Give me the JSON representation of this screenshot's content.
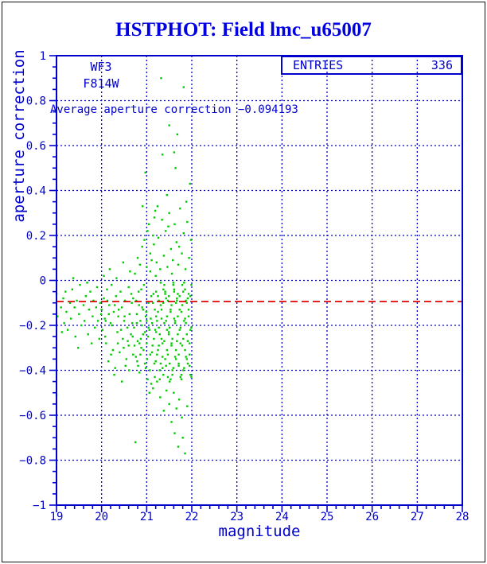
{
  "header": {
    "title": "HSTPHOT: Field lmc_u65007"
  },
  "annotations": {
    "camera": "WF3",
    "filter": "F814W",
    "average_line_label": "Average aperture correction −0.094193",
    "entries_label": "ENTRIES",
    "entries_value": "336"
  },
  "colors": {
    "plot_blue": "#0000CC",
    "title_blue": "#0000E0",
    "point_green": "#00CC00",
    "line_red": "#E60000",
    "page_border": "#101010"
  },
  "chart_data": {
    "type": "scatter",
    "title": "HSTPHOT: Field lmc_u65007",
    "xlabel": "magnitude",
    "ylabel": "aperture correction",
    "xlim": [
      19,
      28
    ],
    "ylim": [
      -1,
      1
    ],
    "grid": "dotted",
    "legend_position": "none",
    "x_ticks": [
      {
        "v": 19,
        "label": "19"
      },
      {
        "v": 20,
        "label": "20"
      },
      {
        "v": 21,
        "label": "21"
      },
      {
        "v": 22,
        "label": "22"
      },
      {
        "v": 23,
        "label": "23"
      },
      {
        "v": 24,
        "label": "24"
      },
      {
        "v": 25,
        "label": "25"
      },
      {
        "v": 26,
        "label": "26"
      },
      {
        "v": 27,
        "label": "27"
      },
      {
        "v": 28,
        "label": "28"
      }
    ],
    "y_ticks": [
      {
        "v": 1,
        "label": "1"
      },
      {
        "v": 0.8,
        "label": "0.8"
      },
      {
        "v": 0.6,
        "label": "0.6"
      },
      {
        "v": 0.4,
        "label": "0.4"
      },
      {
        "v": 0.2,
        "label": "0.2"
      },
      {
        "v": 0,
        "label": "0"
      },
      {
        "v": -0.2,
        "label": "−0.2"
      },
      {
        "v": -0.4,
        "label": "−0.4"
      },
      {
        "v": -0.6,
        "label": "−0.6"
      },
      {
        "v": -0.8,
        "label": "−0.8"
      },
      {
        "v": -1,
        "label": "−1"
      }
    ],
    "x_minor_step": 0.2,
    "y_minor_step": 0.05,
    "entries": 336,
    "average_aperture_correction": -0.094193,
    "points": [
      [
        19.0,
        -0.06
      ],
      [
        19.02,
        -0.16
      ],
      [
        19.0,
        -0.51
      ],
      [
        19.1,
        -0.12
      ],
      [
        19.15,
        -0.08
      ],
      [
        19.17,
        -0.19
      ],
      [
        19.2,
        -0.05
      ],
      [
        19.22,
        -0.14
      ],
      [
        19.25,
        -0.22
      ],
      [
        19.3,
        -0.1
      ],
      [
        19.32,
        -0.17
      ],
      [
        19.35,
        -0.04
      ],
      [
        19.4,
        -0.12
      ],
      [
        19.42,
        -0.25
      ],
      [
        19.45,
        -0.09
      ],
      [
        19.5,
        -0.15
      ],
      [
        19.52,
        -0.02
      ],
      [
        19.55,
        -0.2
      ],
      [
        19.6,
        -0.11
      ],
      [
        19.62,
        -0.18
      ],
      [
        19.65,
        -0.07
      ],
      [
        19.7,
        -0.24
      ],
      [
        19.72,
        -0.13
      ],
      [
        19.75,
        -0.05
      ],
      [
        19.78,
        -0.28
      ],
      [
        19.8,
        -0.16
      ],
      [
        19.82,
        -0.09
      ],
      [
        19.85,
        -0.21
      ],
      [
        19.88,
        -0.12
      ],
      [
        19.9,
        -0.03
      ],
      [
        19.92,
        -0.18
      ],
      [
        19.95,
        -0.26
      ],
      [
        19.97,
        -0.1
      ],
      [
        19.99,
        -0.15
      ],
      [
        19.37,
        0.01
      ],
      [
        19.68,
        -0.01
      ],
      [
        19.12,
        -0.23
      ],
      [
        19.48,
        -0.3
      ],
      [
        20.0,
        -0.13
      ],
      [
        20.02,
        -0.22
      ],
      [
        20.05,
        -0.08
      ],
      [
        20.07,
        -0.17
      ],
      [
        20.1,
        -0.28
      ],
      [
        20.12,
        -0.04
      ],
      [
        20.15,
        -0.36
      ],
      [
        20.17,
        -0.11
      ],
      [
        20.2,
        -0.19
      ],
      [
        20.22,
        -0.02
      ],
      [
        20.25,
        -0.31
      ],
      [
        20.27,
        -0.14
      ],
      [
        20.3,
        -0.39
      ],
      [
        20.32,
        -0.07
      ],
      [
        20.35,
        -0.23
      ],
      [
        20.37,
        -0.16
      ],
      [
        20.4,
        -0.32
      ],
      [
        20.42,
        -0.05
      ],
      [
        20.45,
        -0.12
      ],
      [
        20.45,
        -0.45
      ],
      [
        20.47,
        -0.26
      ],
      [
        20.5,
        -0.18
      ],
      [
        20.52,
        -0.09
      ],
      [
        20.55,
        -0.35
      ],
      [
        20.57,
        -0.21
      ],
      [
        20.6,
        -0.03
      ],
      [
        20.6,
        -0.29
      ],
      [
        20.62,
        -0.15
      ],
      [
        20.65,
        -0.24
      ],
      [
        20.67,
        -0.1
      ],
      [
        20.7,
        -0.33
      ],
      [
        20.05,
        0.02
      ],
      [
        20.18,
        0.05
      ],
      [
        20.33,
        0.01
      ],
      [
        20.48,
        0.08
      ],
      [
        20.63,
        0.04
      ],
      [
        20.28,
        -0.42
      ],
      [
        20.53,
        -0.38
      ],
      [
        20.08,
        -0.25
      ],
      [
        20.23,
        -0.2
      ],
      [
        20.38,
        -0.13
      ],
      [
        20.58,
        -0.27
      ],
      [
        20.68,
        -0.19
      ],
      [
        20.13,
        -0.09
      ],
      [
        20.43,
        -0.22
      ],
      [
        20.66,
        -0.06
      ],
      [
        20.21,
        -0.33
      ],
      [
        20.36,
        -0.28
      ],
      [
        20.51,
        -0.16
      ],
      [
        20.61,
        -0.4
      ],
      [
        20.09,
        -0.18
      ],
      [
        20.29,
        -0.11
      ],
      [
        20.49,
        -0.3
      ],
      [
        20.69,
        -0.25
      ],
      [
        20.16,
        -0.15
      ],
      [
        20.7,
        -0.08
      ],
      [
        20.72,
        -0.21
      ],
      [
        20.74,
        0.03
      ],
      [
        20.76,
        -0.34
      ],
      [
        20.78,
        -0.15
      ],
      [
        20.8,
        -0.27
      ],
      [
        20.8,
        0.1
      ],
      [
        20.82,
        -0.05
      ],
      [
        20.84,
        -0.41
      ],
      [
        20.86,
        -0.18
      ],
      [
        20.88,
        -0.3
      ],
      [
        20.9,
        -0.12
      ],
      [
        20.9,
        0.15
      ],
      [
        20.92,
        -0.24
      ],
      [
        20.94,
        -0.02
      ],
      [
        20.96,
        -0.37
      ],
      [
        20.97,
        0.48
      ],
      [
        20.98,
        -0.16
      ],
      [
        21.0,
        -0.28
      ],
      [
        21.0,
        0.06
      ],
      [
        21.02,
        -0.44
      ],
      [
        21.04,
        -0.1
      ],
      [
        21.06,
        -0.22
      ],
      [
        21.08,
        0.12
      ],
      [
        21.08,
        -0.33
      ],
      [
        21.1,
        -0.07
      ],
      [
        21.12,
        -0.19
      ],
      [
        21.14,
        -0.48
      ],
      [
        21.14,
        0.2
      ],
      [
        21.16,
        -0.26
      ],
      [
        21.18,
        -0.13
      ],
      [
        21.2,
        -0.36
      ],
      [
        21.2,
        0.02
      ],
      [
        20.73,
        -0.29
      ],
      [
        20.77,
        -0.09
      ],
      [
        20.81,
        -0.38
      ],
      [
        20.85,
        0.07
      ],
      [
        20.89,
        -0.2
      ],
      [
        20.93,
        -0.31
      ],
      [
        20.95,
        0.18
      ],
      [
        20.99,
        -0.14
      ],
      [
        21.03,
        -0.25
      ],
      [
        21.05,
        0.25
      ],
      [
        21.07,
        -0.4
      ],
      [
        21.09,
        -0.17
      ],
      [
        21.11,
        0.09
      ],
      [
        21.13,
        -0.29
      ],
      [
        21.15,
        -0.06
      ],
      [
        21.17,
        0.28
      ],
      [
        21.19,
        -0.22
      ],
      [
        20.75,
        -0.72
      ],
      [
        20.79,
        -0.36
      ],
      [
        20.83,
        -0.11
      ],
      [
        20.87,
        -0.26
      ],
      [
        20.91,
        0.33
      ],
      [
        21.01,
        -0.35
      ],
      [
        21.06,
        -0.5
      ],
      [
        21.16,
        0.16
      ],
      [
        20.96,
        -0.23
      ],
      [
        21.18,
        -0.43
      ],
      [
        20.88,
        -0.04
      ],
      [
        21.02,
        0.22
      ],
      [
        21.12,
        -0.32
      ],
      [
        20.78,
        -0.19
      ],
      [
        20.98,
        -0.39
      ],
      [
        21.08,
        0.04
      ],
      [
        21.1,
        -0.46
      ],
      [
        20.92,
        -0.13
      ],
      [
        21.04,
        -0.21
      ],
      [
        21.14,
        -0.1
      ],
      [
        20.84,
        -0.28
      ],
      [
        21.0,
        -0.18
      ],
      [
        21.19,
        0.31
      ],
      [
        20.86,
        -0.33
      ],
      [
        21.17,
        -0.37
      ],
      [
        21.32,
        0.9
      ],
      [
        21.82,
        0.86
      ],
      [
        21.5,
        0.69
      ],
      [
        21.68,
        0.65
      ],
      [
        21.35,
        0.56
      ],
      [
        21.61,
        0.57
      ],
      [
        21.64,
        0.5
      ],
      [
        21.96,
        0.43
      ],
      [
        21.45,
        0.38
      ],
      [
        21.22,
        0.08
      ],
      [
        21.26,
        0.19
      ],
      [
        21.3,
        0.05
      ],
      [
        21.34,
        0.27
      ],
      [
        21.38,
        0.11
      ],
      [
        21.42,
        0.22
      ],
      [
        21.46,
        0.06
      ],
      [
        21.5,
        0.3
      ],
      [
        21.54,
        0.14
      ],
      [
        21.58,
        0.09
      ],
      [
        21.62,
        0.25
      ],
      [
        21.66,
        0.17
      ],
      [
        21.7,
        0.07
      ],
      [
        21.74,
        0.32
      ],
      [
        21.78,
        0.12
      ],
      [
        21.82,
        0.21
      ],
      [
        21.86,
        0.05
      ],
      [
        21.9,
        0.26
      ],
      [
        21.94,
        0.1
      ],
      [
        21.98,
        0.18
      ],
      [
        21.24,
        0.33
      ],
      [
        21.48,
        0.24
      ],
      [
        21.72,
        0.15
      ],
      [
        21.88,
        0.35
      ],
      [
        21.56,
        0.03
      ],
      [
        21.21,
        -0.05
      ],
      [
        21.21,
        -0.16
      ],
      [
        21.21,
        -0.23
      ],
      [
        21.23,
        -0.18
      ],
      [
        21.23,
        -0.33
      ],
      [
        21.23,
        -0.45
      ],
      [
        21.25,
        -0.31
      ],
      [
        21.25,
        -0.07
      ],
      [
        21.25,
        -0.14
      ],
      [
        21.27,
        -0.09
      ],
      [
        21.27,
        -0.21
      ],
      [
        21.27,
        -0.29
      ],
      [
        21.29,
        -0.24
      ],
      [
        21.29,
        -0.44
      ],
      [
        21.29,
        -0.4
      ],
      [
        21.31,
        -0.37
      ],
      [
        21.31,
        -0.11
      ],
      [
        21.31,
        -0.01
      ],
      [
        21.33,
        -0.13
      ],
      [
        21.33,
        -0.26
      ],
      [
        21.33,
        -0.17
      ],
      [
        21.35,
        -0.28
      ],
      [
        21.35,
        -0.39
      ],
      [
        21.35,
        -0.34
      ],
      [
        21.37,
        -0.42
      ],
      [
        21.37,
        -0.04
      ],
      [
        21.37,
        -0.1
      ],
      [
        21.39,
        -0.02
      ],
      [
        21.39,
        -0.19
      ],
      [
        21.39,
        -0.27
      ],
      [
        21.41,
        -0.05
      ],
      [
        21.41,
        -0.35
      ],
      [
        21.41,
        -0.06
      ],
      [
        21.43,
        -0.18
      ],
      [
        21.43,
        -0.08
      ],
      [
        21.43,
        -0.38
      ],
      [
        21.45,
        -0.31
      ],
      [
        21.45,
        -0.16
      ],
      [
        21.45,
        -0.22
      ],
      [
        21.47,
        -0.09
      ],
      [
        21.47,
        -0.33
      ],
      [
        21.47,
        -0.43
      ],
      [
        21.49,
        -0.24
      ],
      [
        21.49,
        -0.07
      ],
      [
        21.49,
        -0.23
      ],
      [
        21.51,
        -0.37
      ],
      [
        21.51,
        -0.21
      ],
      [
        21.51,
        -0.45
      ],
      [
        21.53,
        -0.13
      ],
      [
        21.53,
        -0.44
      ],
      [
        21.53,
        -0.14
      ],
      [
        21.55,
        -0.28
      ],
      [
        21.55,
        -0.11
      ],
      [
        21.55,
        -0.29
      ],
      [
        21.57,
        -0.42
      ],
      [
        21.57,
        -0.26
      ],
      [
        21.57,
        -0.4
      ],
      [
        21.59,
        -0.02
      ],
      [
        21.59,
        -0.39
      ],
      [
        21.59,
        -0.01
      ],
      [
        21.61,
        -0.05
      ],
      [
        21.61,
        -0.04
      ],
      [
        21.61,
        -0.17
      ],
      [
        21.63,
        -0.18
      ],
      [
        21.63,
        -0.19
      ],
      [
        21.63,
        -0.34
      ],
      [
        21.65,
        -0.31
      ],
      [
        21.65,
        -0.35
      ],
      [
        21.65,
        -0.1
      ],
      [
        21.67,
        -0.09
      ],
      [
        21.67,
        -0.08
      ],
      [
        21.67,
        -0.27
      ],
      [
        21.69,
        -0.24
      ],
      [
        21.69,
        -0.16
      ],
      [
        21.69,
        -0.06
      ],
      [
        21.71,
        -0.37
      ],
      [
        21.71,
        -0.33
      ],
      [
        21.71,
        -0.38
      ],
      [
        21.73,
        -0.13
      ],
      [
        21.73,
        -0.07
      ],
      [
        21.73,
        -0.22
      ],
      [
        21.75,
        -0.28
      ],
      [
        21.75,
        -0.21
      ],
      [
        21.75,
        -0.43
      ],
      [
        21.77,
        -0.42
      ],
      [
        21.77,
        -0.44
      ],
      [
        21.77,
        -0.14
      ],
      [
        21.79,
        -0.02
      ],
      [
        21.79,
        -0.11
      ],
      [
        21.79,
        -0.29
      ],
      [
        21.81,
        -0.05
      ],
      [
        21.81,
        -0.26
      ],
      [
        21.81,
        -0.4
      ],
      [
        21.83,
        -0.18
      ],
      [
        21.83,
        -0.39
      ],
      [
        21.83,
        -0.01
      ],
      [
        21.85,
        -0.31
      ],
      [
        21.85,
        -0.04
      ],
      [
        21.85,
        -0.17
      ],
      [
        21.87,
        -0.09
      ],
      [
        21.87,
        -0.19
      ],
      [
        21.87,
        -0.34
      ],
      [
        21.89,
        -0.24
      ],
      [
        21.89,
        -0.35
      ],
      [
        21.89,
        -0.1
      ],
      [
        21.91,
        -0.37
      ],
      [
        21.91,
        -0.08
      ],
      [
        21.91,
        -0.27
      ],
      [
        21.93,
        -0.13
      ],
      [
        21.93,
        -0.16
      ],
      [
        21.93,
        -0.06
      ],
      [
        21.95,
        -0.28
      ],
      [
        21.95,
        -0.33
      ],
      [
        21.95,
        -0.38
      ],
      [
        21.97,
        -0.42
      ],
      [
        21.97,
        -0.07
      ],
      [
        21.97,
        -0.22
      ],
      [
        21.99,
        -0.02
      ],
      [
        21.99,
        -0.21
      ],
      [
        21.99,
        -0.43
      ],
      [
        21.3,
        -0.52
      ],
      [
        21.38,
        -0.58
      ],
      [
        21.44,
        -0.49
      ],
      [
        21.5,
        -0.55
      ],
      [
        21.55,
        -0.63
      ],
      [
        21.6,
        -0.5
      ],
      [
        21.62,
        -0.68
      ],
      [
        21.66,
        -0.57
      ],
      [
        21.7,
        -0.74
      ],
      [
        21.72,
        -0.53
      ],
      [
        21.78,
        -0.61
      ],
      [
        21.8,
        -0.7
      ],
      [
        21.85,
        -0.77
      ],
      [
        21.9,
        -0.56
      ]
    ]
  }
}
